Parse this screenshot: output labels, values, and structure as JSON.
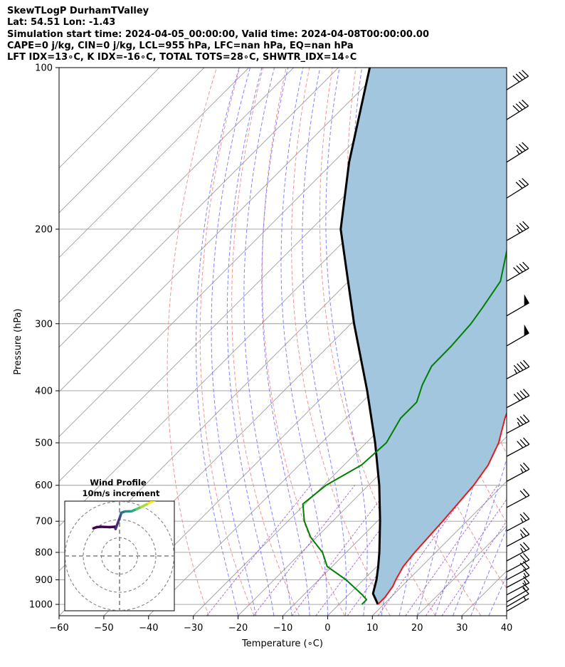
{
  "header": {
    "lines": [
      "SkewTLogP DurhamTValley",
      "Lat: 54.51   Lon: -1.43",
      "Simulation start time: 2024-04-05_00:00:00, Valid time: 2024-04-08T00:00:00.00",
      "CAPE=0 j/kg, CIN=0 j/kg, LCL=955 hPa, LFC=nan hPa, EQ=nan hPa",
      "LFT IDX=13∘C, K IDX=-16∘C, TOTAL TOTS=28∘C, SHWTR_IDX=14∘C"
    ]
  },
  "chart_data": {
    "type": "line",
    "xlabel": "Temperature (∘C)",
    "ylabel": "Pressure (hPa)",
    "xlim": [
      -60,
      40
    ],
    "ylim": [
      1050,
      100
    ],
    "y_scale": "log",
    "skew": true,
    "grid": true,
    "x_ticks": [
      -60,
      -50,
      -40,
      -30,
      -20,
      -10,
      0,
      10,
      20,
      30,
      40
    ],
    "y_ticks": [
      1000,
      900,
      800,
      700,
      600,
      500,
      400,
      300,
      200,
      100
    ],
    "colors": {
      "temperature": "#e41a1c",
      "dewpoint": "#008000",
      "parcel": "#000000",
      "shading": "#a3c6df",
      "dry_adiabats": "#f08080",
      "moist_adiabats": "#6e6eff",
      "mixing_ratio": "#9a4ad0",
      "isotherms": "#9e9e9e"
    },
    "series": [
      {
        "key": "temperature",
        "points": [
          [
            1000,
            8.7
          ],
          [
            970,
            8.7
          ],
          [
            925,
            8.0
          ],
          [
            900,
            7.2
          ],
          [
            850,
            5.9
          ],
          [
            800,
            5.3
          ],
          [
            700,
            4.6
          ],
          [
            600,
            3.5
          ],
          [
            550,
            2.2
          ],
          [
            500,
            -0.4
          ],
          [
            450,
            -4.5
          ],
          [
            400,
            -8.4
          ],
          [
            350,
            -13.2
          ],
          [
            300,
            -18.7
          ],
          [
            285,
            -20.3
          ],
          [
            265,
            -21.5
          ],
          [
            250,
            -20.6
          ],
          [
            230,
            -19.2
          ],
          [
            200,
            -17.9
          ],
          [
            170,
            -17.5
          ],
          [
            150,
            -17.3
          ],
          [
            130,
            -17.6
          ],
          [
            115,
            -19.5
          ],
          [
            100,
            -23.1
          ]
        ]
      },
      {
        "key": "dewpoint",
        "points": [
          [
            1000,
            5.1
          ],
          [
            980,
            5.1
          ],
          [
            960,
            3.1
          ],
          [
            900,
            -3.9
          ],
          [
            850,
            -11.1
          ],
          [
            800,
            -15.3
          ],
          [
            750,
            -21.3
          ],
          [
            700,
            -26.3
          ],
          [
            650,
            -30.5
          ],
          [
            600,
            -29.5
          ],
          [
            550,
            -26.1
          ],
          [
            500,
            -25.5
          ],
          [
            450,
            -27.8
          ],
          [
            420,
            -27.8
          ],
          [
            390,
            -30.4
          ],
          [
            360,
            -32.5
          ],
          [
            330,
            -32.6
          ],
          [
            300,
            -33.2
          ],
          [
            280,
            -34.2
          ],
          [
            250,
            -36.1
          ],
          [
            200,
            -45.3
          ],
          [
            180,
            -50.6
          ],
          [
            150,
            -56.6
          ],
          [
            120,
            -64.8
          ],
          [
            100,
            -73.0
          ]
        ]
      },
      {
        "key": "parcel",
        "points": [
          [
            1000,
            8.7
          ],
          [
            955,
            5.2
          ],
          [
            900,
            2.9
          ],
          [
            850,
            0.3
          ],
          [
            800,
            -2.6
          ],
          [
            700,
            -9.4
          ],
          [
            600,
            -17.6
          ],
          [
            500,
            -28.0
          ],
          [
            400,
            -41.4
          ],
          [
            300,
            -59.3
          ],
          [
            200,
            -83.4
          ],
          [
            150,
            -96.5
          ],
          [
            100,
            -113.0
          ]
        ]
      }
    ],
    "wind_barbs": {
      "levels": [
        1030,
        1010,
        990,
        960,
        930,
        900,
        870,
        830,
        780,
        730,
        660,
        590,
        530,
        480,
        430,
        380,
        330,
        290,
        250,
        210,
        175,
        150,
        125,
        110
      ],
      "speeds": [
        4,
        9,
        14,
        14,
        14,
        18,
        22,
        25,
        25,
        24,
        22,
        25,
        30,
        34,
        40,
        45,
        52,
        48,
        38,
        34,
        32,
        34,
        38,
        38
      ],
      "directions_deg": [
        240,
        240,
        240,
        242,
        242,
        242,
        242,
        242,
        242,
        242,
        242,
        242,
        242,
        242,
        242,
        242,
        240,
        240,
        240,
        240,
        238,
        238,
        238,
        238
      ]
    },
    "inset": {
      "title": "Wind Profile",
      "subtitle": "10m/s increment",
      "rings_ms": [
        10,
        20,
        30
      ],
      "hodograph_uv": [
        [
          -14.4,
          15.2
        ],
        [
          -13.9,
          15.4
        ],
        [
          -12.5,
          15.9
        ],
        [
          -10.3,
          16.1
        ],
        [
          -8.0,
          16.0
        ],
        [
          -5.4,
          15.9
        ],
        [
          -2.6,
          16.1
        ],
        [
          -2.2,
          14.9
        ],
        [
          0.2,
          21.3
        ],
        [
          1.0,
          23.8
        ],
        [
          3.0,
          24.5
        ],
        [
          6.6,
          24.6
        ],
        [
          9.4,
          25.8
        ],
        [
          12.0,
          27.0
        ],
        [
          16.0,
          29.0
        ],
        [
          20.0,
          31.0
        ]
      ]
    }
  }
}
